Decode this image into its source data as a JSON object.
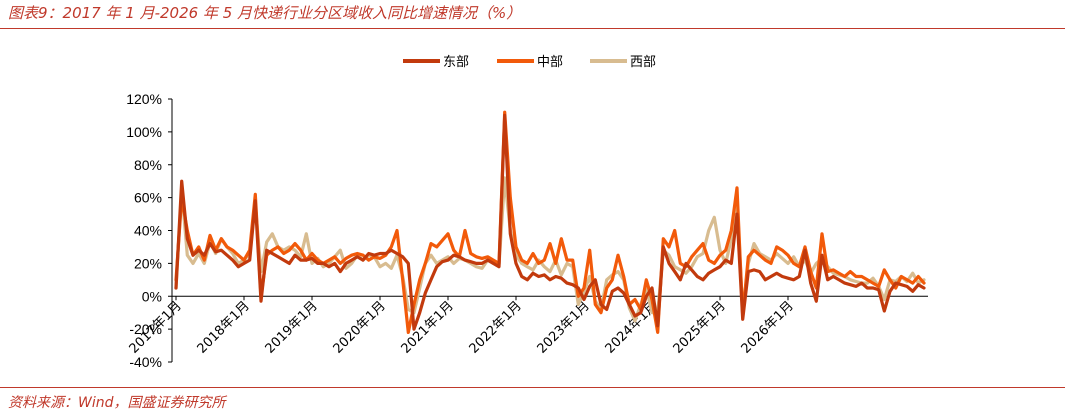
{
  "header": {
    "title": "图表9：2017 年 1 月-2026 年 5 月快递行业分区域收入同比增速情况（%）"
  },
  "footer": {
    "source": "资料来源：Wind，国盛证券研究所"
  },
  "colors": {
    "accent": "#c0392b",
    "east": "#c23a0d",
    "central": "#f25a0a",
    "west": "#d8bc90"
  },
  "chart_data": {
    "type": "line",
    "title": "",
    "xlabel": "",
    "ylabel": "",
    "ylim": [
      -40,
      120
    ],
    "yticks": [
      "120%",
      "100%",
      "80%",
      "60%",
      "40%",
      "20%",
      "0%",
      "-20%",
      "-40%"
    ],
    "xticks": [
      "2017年1月",
      "2018年1月",
      "2019年1月",
      "2020年1月",
      "2021年1月",
      "2022年1月",
      "2023年1月",
      "2024年1月",
      "2025年1月",
      "2026年1月"
    ],
    "legend_position": "top-center",
    "grid": false,
    "series": [
      {
        "name": "东部",
        "color": "#c23a0d",
        "values": [
          5,
          70,
          35,
          25,
          28,
          25,
          32,
          27,
          28,
          25,
          22,
          18,
          20,
          22,
          58,
          -3,
          28,
          26,
          24,
          22,
          20,
          25,
          22,
          22,
          23,
          20,
          20,
          18,
          20,
          15,
          20,
          22,
          24,
          22,
          26,
          25,
          26,
          26,
          28,
          26,
          24,
          20,
          -20,
          -10,
          2,
          10,
          18,
          21,
          22,
          25,
          24,
          22,
          21,
          20,
          20,
          22,
          20,
          18,
          110,
          38,
          20,
          12,
          10,
          14,
          12,
          13,
          10,
          12,
          11,
          8,
          7,
          5,
          -2,
          6,
          10,
          -5,
          -8,
          3,
          5,
          2,
          -5,
          -12,
          -10,
          0,
          5,
          -18,
          30,
          20,
          15,
          10,
          20,
          16,
          12,
          10,
          14,
          16,
          18,
          22,
          20,
          50,
          -14,
          15,
          16,
          15,
          10,
          12,
          14,
          12,
          11,
          10,
          12,
          28,
          8,
          -3,
          25,
          10,
          12,
          10,
          8,
          7,
          6,
          8,
          5,
          5,
          4,
          -9,
          3,
          8,
          7,
          6,
          3,
          7,
          5
        ],
        "notes": "monthly values Jan 2017 – May 2026 estimated from chart"
      },
      {
        "name": "中部",
        "color": "#f25a0a",
        "values": [
          10,
          60,
          40,
          25,
          30,
          22,
          37,
          28,
          35,
          30,
          28,
          25,
          22,
          28,
          62,
          0,
          25,
          28,
          30,
          26,
          28,
          32,
          28,
          22,
          26,
          22,
          20,
          22,
          24,
          20,
          23,
          25,
          26,
          25,
          22,
          24,
          23,
          25,
          30,
          40,
          10,
          -22,
          -5,
          10,
          20,
          32,
          30,
          34,
          38,
          28,
          24,
          40,
          26,
          24,
          23,
          24,
          22,
          20,
          112,
          60,
          30,
          22,
          20,
          26,
          20,
          22,
          32,
          20,
          35,
          22,
          22,
          0,
          5,
          28,
          -5,
          -10,
          5,
          10,
          25,
          12,
          -5,
          -2,
          -8,
          10,
          -2,
          -22,
          35,
          30,
          40,
          20,
          18,
          24,
          28,
          32,
          22,
          20,
          25,
          28,
          40,
          66,
          -12,
          24,
          28,
          25,
          22,
          20,
          30,
          28,
          25,
          20,
          18,
          30,
          15,
          5,
          38,
          15,
          16,
          14,
          12,
          15,
          12,
          12,
          10,
          8,
          6,
          16,
          10,
          5,
          12,
          10,
          8,
          12,
          8
        ],
        "notes": "monthly values Jan 2017 – May 2026 estimated from chart"
      },
      {
        "name": "西部",
        "color": "#d8bc90",
        "values": [
          5,
          65,
          25,
          20,
          26,
          20,
          33,
          26,
          35,
          30,
          26,
          20,
          22,
          26,
          56,
          15,
          33,
          38,
          30,
          28,
          30,
          28,
          24,
          38,
          20,
          23,
          18,
          20,
          24,
          28,
          17,
          20,
          25,
          22,
          25,
          24,
          18,
          20,
          17,
          25,
          12,
          -8,
          -10,
          5,
          20,
          25,
          20,
          22,
          24,
          20,
          23,
          22,
          20,
          18,
          17,
          22,
          20,
          19,
          72,
          40,
          25,
          20,
          18,
          16,
          22,
          18,
          15,
          22,
          13,
          20,
          18,
          -5,
          3,
          12,
          -3,
          -8,
          10,
          13,
          15,
          10,
          -7,
          -15,
          -5,
          5,
          -10,
          -10,
          28,
          25,
          18,
          16,
          14,
          18,
          24,
          26,
          40,
          48,
          28,
          20,
          35,
          60,
          -10,
          20,
          32,
          26,
          24,
          22,
          26,
          23,
          20,
          24,
          18,
          22,
          14,
          20,
          23,
          18,
          14,
          13,
          12,
          10,
          9,
          8,
          8,
          11,
          6,
          -2,
          10,
          9,
          12,
          9,
          14,
          8,
          10
        ],
        "notes": "monthly values Jan 2017 – May 2026 estimated from chart"
      }
    ]
  }
}
